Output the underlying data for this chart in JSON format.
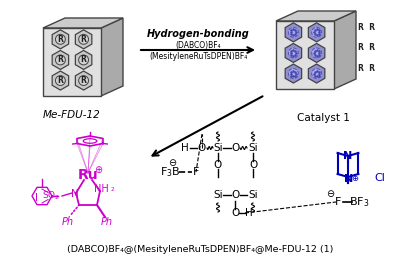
{
  "title": "(DABCO)BF₄@(MesityleneRuTsDPEN)BF₄@Me-FDU-12 (1)",
  "label_left": "Me-FDU-12",
  "label_right": "Catalyst 1",
  "arrow_text1": "Hydrogen-bonding",
  "arrow_text2": "(DABCO)BF₄",
  "arrow_text3": "(MesityleneRuTsDPEN)BF₄",
  "bg_color": "#ffffff",
  "magenta": "#cc00cc",
  "blue": "#0000bb",
  "black": "#000000",
  "gray_light": "#e8e8e8",
  "gray_mid": "#c0c0c0",
  "gray_dark": "#888888"
}
